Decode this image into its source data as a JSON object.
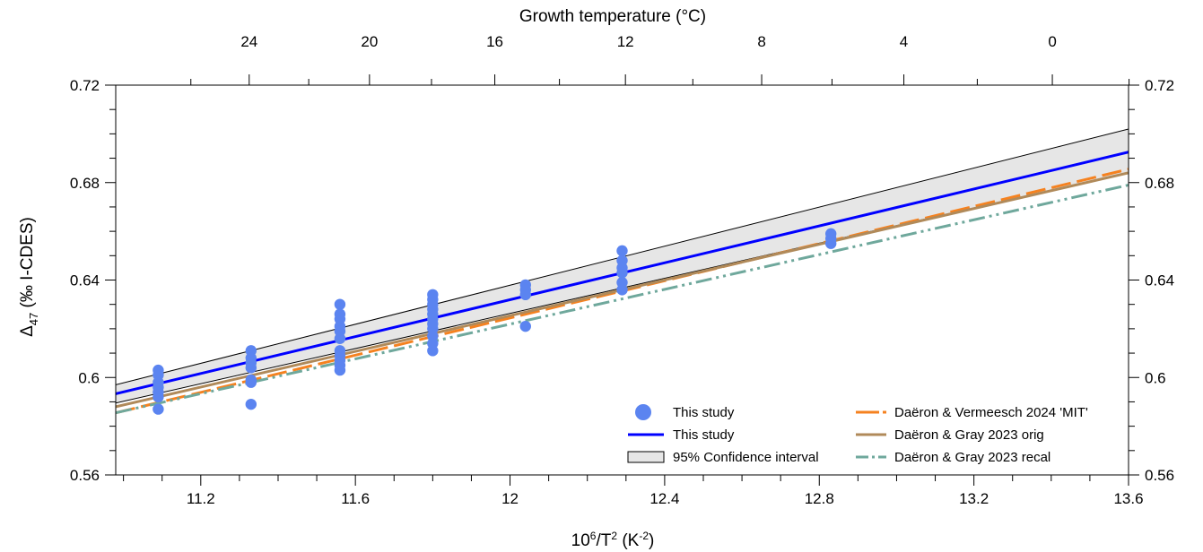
{
  "chart_data": {
    "type": "scatter",
    "xlabel_base": "10",
    "xlabel_sup": "6",
    "xlabel_mid": "/T",
    "xlabel_sup2": "2",
    "xlabel_unit": " (K",
    "xlabel_unit_sup": "-2",
    "xlabel_end": ")",
    "ylabel_symbol": "Δ",
    "ylabel_sub": "47",
    "ylabel_rest": " (‰ I-CDES)",
    "top_xlabel": "Growth temperature (°C)",
    "xlim": [
      10.98,
      13.6
    ],
    "ylim": [
      0.56,
      0.72
    ],
    "x_ticks": [
      11.2,
      11.6,
      12,
      12.4,
      12.8,
      13.2,
      13.6
    ],
    "x_tick_labels": [
      "11.2",
      "11.6",
      "12",
      "12.4",
      "12.8",
      "13.2",
      "13.6"
    ],
    "y_ticks": [
      0.56,
      0.6,
      0.64,
      0.68,
      0.72
    ],
    "y_tick_labels": [
      "0.56",
      "0.6",
      "0.64",
      "0.68",
      "0.72"
    ],
    "top_ticks_celsius": [
      24,
      20,
      16,
      12,
      8,
      4,
      0
    ],
    "top_tick_labels": [
      "24",
      "20",
      "16",
      "12",
      "8",
      "4",
      "0"
    ],
    "top_minor_ticks_celsius": [
      26,
      22,
      18,
      14,
      10,
      6,
      2,
      -2
    ],
    "scatter": {
      "name": "This study",
      "color": "#5b84f0",
      "points": [
        [
          11.09,
          0.603
        ],
        [
          11.09,
          0.601
        ],
        [
          11.09,
          0.598
        ],
        [
          11.09,
          0.596
        ],
        [
          11.09,
          0.594
        ],
        [
          11.09,
          0.592
        ],
        [
          11.09,
          0.587
        ],
        [
          11.33,
          0.611
        ],
        [
          11.33,
          0.608
        ],
        [
          11.33,
          0.606
        ],
        [
          11.33,
          0.604
        ],
        [
          11.33,
          0.599
        ],
        [
          11.33,
          0.598
        ],
        [
          11.33,
          0.589
        ],
        [
          11.56,
          0.63
        ],
        [
          11.56,
          0.626
        ],
        [
          11.56,
          0.624
        ],
        [
          11.56,
          0.621
        ],
        [
          11.56,
          0.619
        ],
        [
          11.56,
          0.616
        ],
        [
          11.56,
          0.611
        ],
        [
          11.56,
          0.609
        ],
        [
          11.56,
          0.607
        ],
        [
          11.56,
          0.605
        ],
        [
          11.56,
          0.603
        ],
        [
          11.8,
          0.634
        ],
        [
          11.8,
          0.632
        ],
        [
          11.8,
          0.63
        ],
        [
          11.8,
          0.628
        ],
        [
          11.8,
          0.626
        ],
        [
          11.8,
          0.624
        ],
        [
          11.8,
          0.622
        ],
        [
          11.8,
          0.62
        ],
        [
          11.8,
          0.617
        ],
        [
          11.8,
          0.614
        ],
        [
          11.8,
          0.611
        ],
        [
          12.04,
          0.638
        ],
        [
          12.04,
          0.636
        ],
        [
          12.04,
          0.634
        ],
        [
          12.04,
          0.621
        ],
        [
          12.29,
          0.652
        ],
        [
          12.29,
          0.648
        ],
        [
          12.29,
          0.645
        ],
        [
          12.29,
          0.643
        ],
        [
          12.29,
          0.639
        ],
        [
          12.29,
          0.636
        ],
        [
          12.83,
          0.659
        ],
        [
          12.83,
          0.657
        ],
        [
          12.83,
          0.655
        ]
      ]
    },
    "regression": {
      "name": "This study",
      "color": "#0000ff",
      "x": [
        10.98,
        13.6
      ],
      "y": [
        0.5933,
        0.6925
      ]
    },
    "confidence_interval": {
      "name": "95% Confidence interval",
      "x": [
        10.98,
        13.6
      ],
      "upper": [
        0.597,
        0.702
      ],
      "lower": [
        0.5895,
        0.684
      ],
      "fill": "#e6e6e6"
    },
    "series": [
      {
        "name": "Daëron & Vermeesch 2024 'MIT'",
        "color": "#f58220",
        "dash": "long-dash",
        "x": [
          10.98,
          13.6
        ],
        "y": [
          0.5855,
          0.6855
        ]
      },
      {
        "name": "Daëron & Gray 2023 orig",
        "color": "#b08a5a",
        "dash": "solid",
        "x": [
          10.98,
          13.6
        ],
        "y": [
          0.588,
          0.684
        ]
      },
      {
        "name": "Daëron & Gray 2023 recal",
        "color": "#6fa89c",
        "dash": "dash-dot-dot",
        "x": [
          10.98,
          13.6
        ],
        "y": [
          0.5855,
          0.679
        ]
      }
    ],
    "legend_position": "bottom-right",
    "grid": false
  }
}
